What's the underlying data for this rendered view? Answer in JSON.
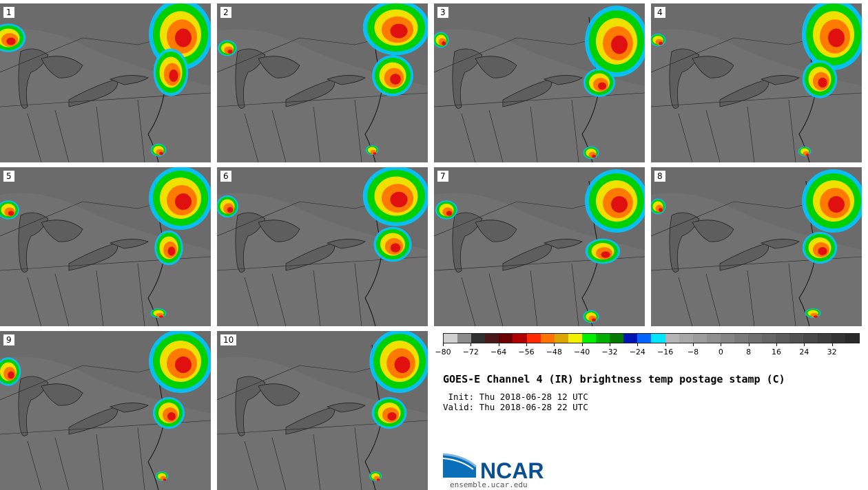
{
  "panels": [
    {
      "label": "1"
    },
    {
      "label": "2"
    },
    {
      "label": "3"
    },
    {
      "label": "4"
    },
    {
      "label": "5"
    },
    {
      "label": "6"
    },
    {
      "label": "7"
    },
    {
      "label": "8"
    },
    {
      "label": "9"
    },
    {
      "label": "10"
    }
  ],
  "colorbar": {
    "colors": [
      "#d0d0d0",
      "#8a8a8a",
      "#303030",
      "#4a1a1a",
      "#6b0000",
      "#b00000",
      "#ff2a00",
      "#ff7300",
      "#d9a600",
      "#f0f000",
      "#00f000",
      "#00b000",
      "#007a00",
      "#0014b4",
      "#0064ff",
      "#00e6ff",
      "#b4b4b4",
      "#a8a8a8",
      "#9c9c9c",
      "#909090",
      "#858585",
      "#7a7a7a",
      "#707070",
      "#666666",
      "#5c5c5c",
      "#525252",
      "#484848",
      "#3e3e3e",
      "#343434",
      "#2a2a2a"
    ],
    "tick_labels": [
      "−80",
      "−72",
      "−64",
      "−56",
      "−48",
      "−40",
      "−32",
      "−24",
      "−16",
      "−8",
      "0",
      "8",
      "16",
      "24",
      "32"
    ]
  },
  "title": "GOES-E Channel 4 (IR) brightness temp postage stamp (C)",
  "init_line": " Init: Thu 2018-06-28 12 UTC",
  "valid_line": "Valid: Thu 2018-06-28 22 UTC",
  "logo_text": "NCAR",
  "site": "ensemble.ucar.edu"
}
